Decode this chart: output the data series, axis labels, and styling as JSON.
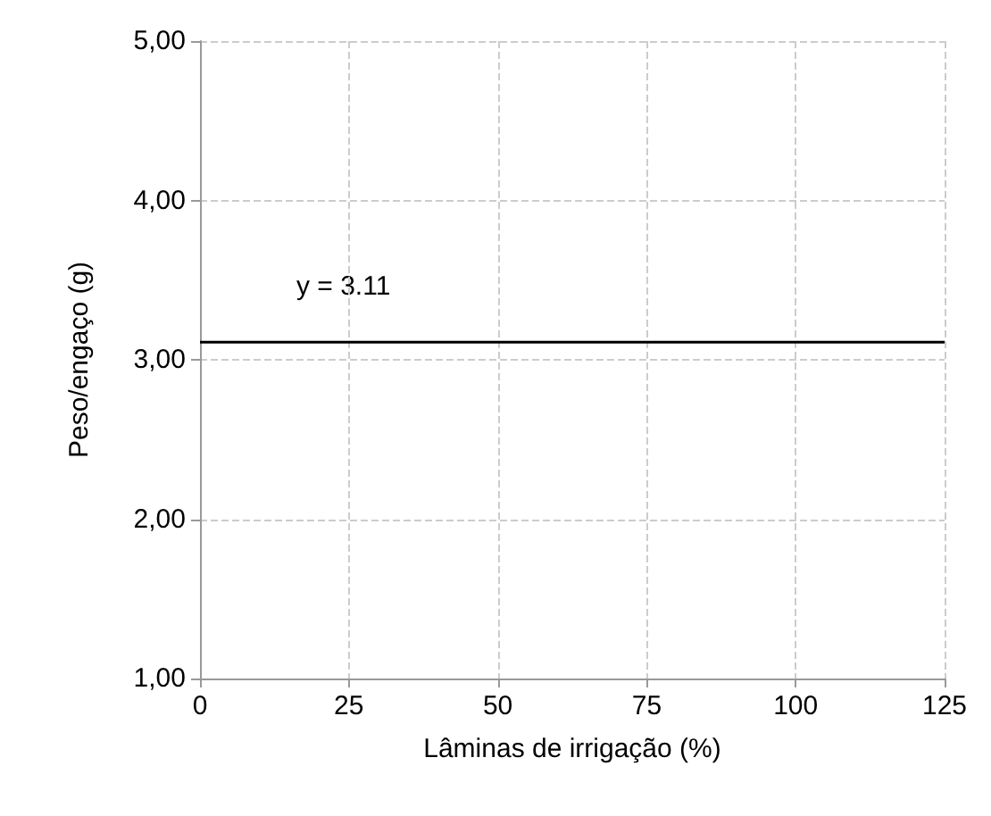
{
  "chart_data": {
    "type": "line",
    "xlabel": "Lâminas de irrigação (%)",
    "ylabel": "Peso/engaço (g)",
    "annotations": [
      "y = 3.11"
    ],
    "x": [
      0,
      125
    ],
    "series": [
      {
        "color": "#000000",
        "values": [
          3.11,
          3.11
        ]
      }
    ],
    "xlim": [
      0,
      125
    ],
    "xticks": [
      0,
      25,
      50,
      75,
      100,
      125
    ],
    "ylim": [
      1,
      5
    ],
    "yticks": [
      {
        "value": 1,
        "label": "1,00"
      },
      {
        "value": 2,
        "label": "2,00"
      },
      {
        "value": 3,
        "label": "3,00"
      },
      {
        "value": 4,
        "label": "4,00"
      },
      {
        "value": 5,
        "label": "5,00"
      }
    ],
    "grid": true,
    "marker": "none",
    "line_style": "solid"
  }
}
